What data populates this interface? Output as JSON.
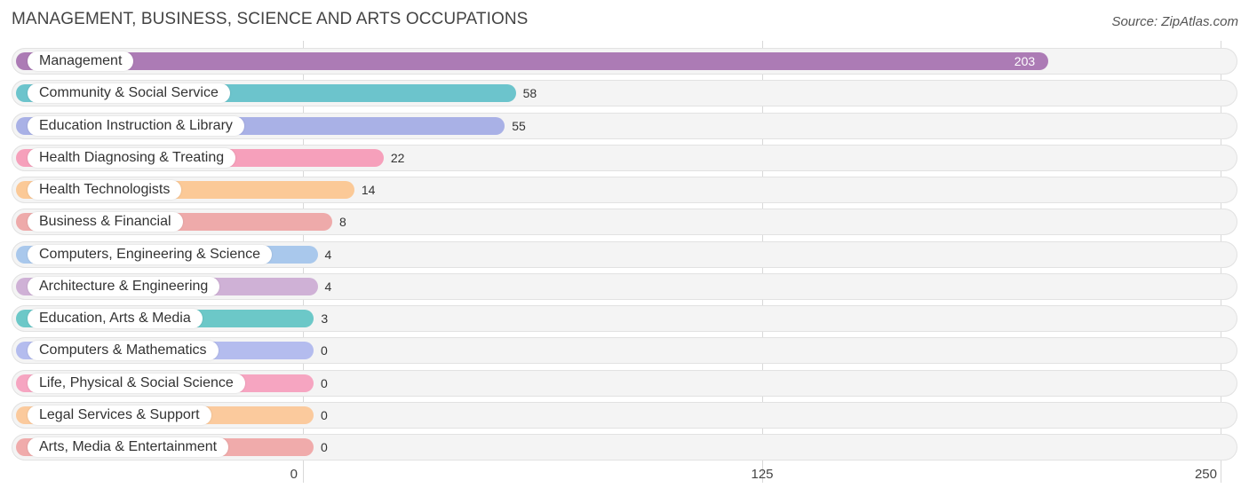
{
  "header": {
    "title": "MANAGEMENT, BUSINESS, SCIENCE AND ARTS OCCUPATIONS",
    "source": "Source: ZipAtlas.com"
  },
  "chart_data": {
    "type": "bar",
    "orientation": "horizontal",
    "title": "MANAGEMENT, BUSINESS, SCIENCE AND ARTS OCCUPATIONS",
    "xlabel": "",
    "ylabel": "",
    "xlim": [
      0,
      250
    ],
    "ticks": [
      "0",
      "125",
      "250"
    ],
    "tick_values": [
      0,
      125,
      250
    ],
    "grid": true,
    "categories": [
      "Management",
      "Community & Social Service",
      "Education Instruction & Library",
      "Health Diagnosing & Treating",
      "Health Technologists",
      "Business & Financial",
      "Computers, Engineering & Science",
      "Architecture & Engineering",
      "Education, Arts & Media",
      "Computers & Mathematics",
      "Life, Physical & Social Science",
      "Legal Services & Support",
      "Arts, Media & Entertainment"
    ],
    "values": [
      203,
      58,
      55,
      22,
      14,
      8,
      4,
      4,
      3,
      0,
      0,
      0,
      0
    ],
    "colors": [
      "#ac7bb5",
      "#6cc4cc",
      "#a9b1e6",
      "#f6a0bb",
      "#fbc997",
      "#eeaaaa",
      "#a9c8ec",
      "#cfb1d6",
      "#6cc8c8",
      "#b4bcee",
      "#f6a5c1",
      "#fbca9d",
      "#f0abab"
    ]
  }
}
